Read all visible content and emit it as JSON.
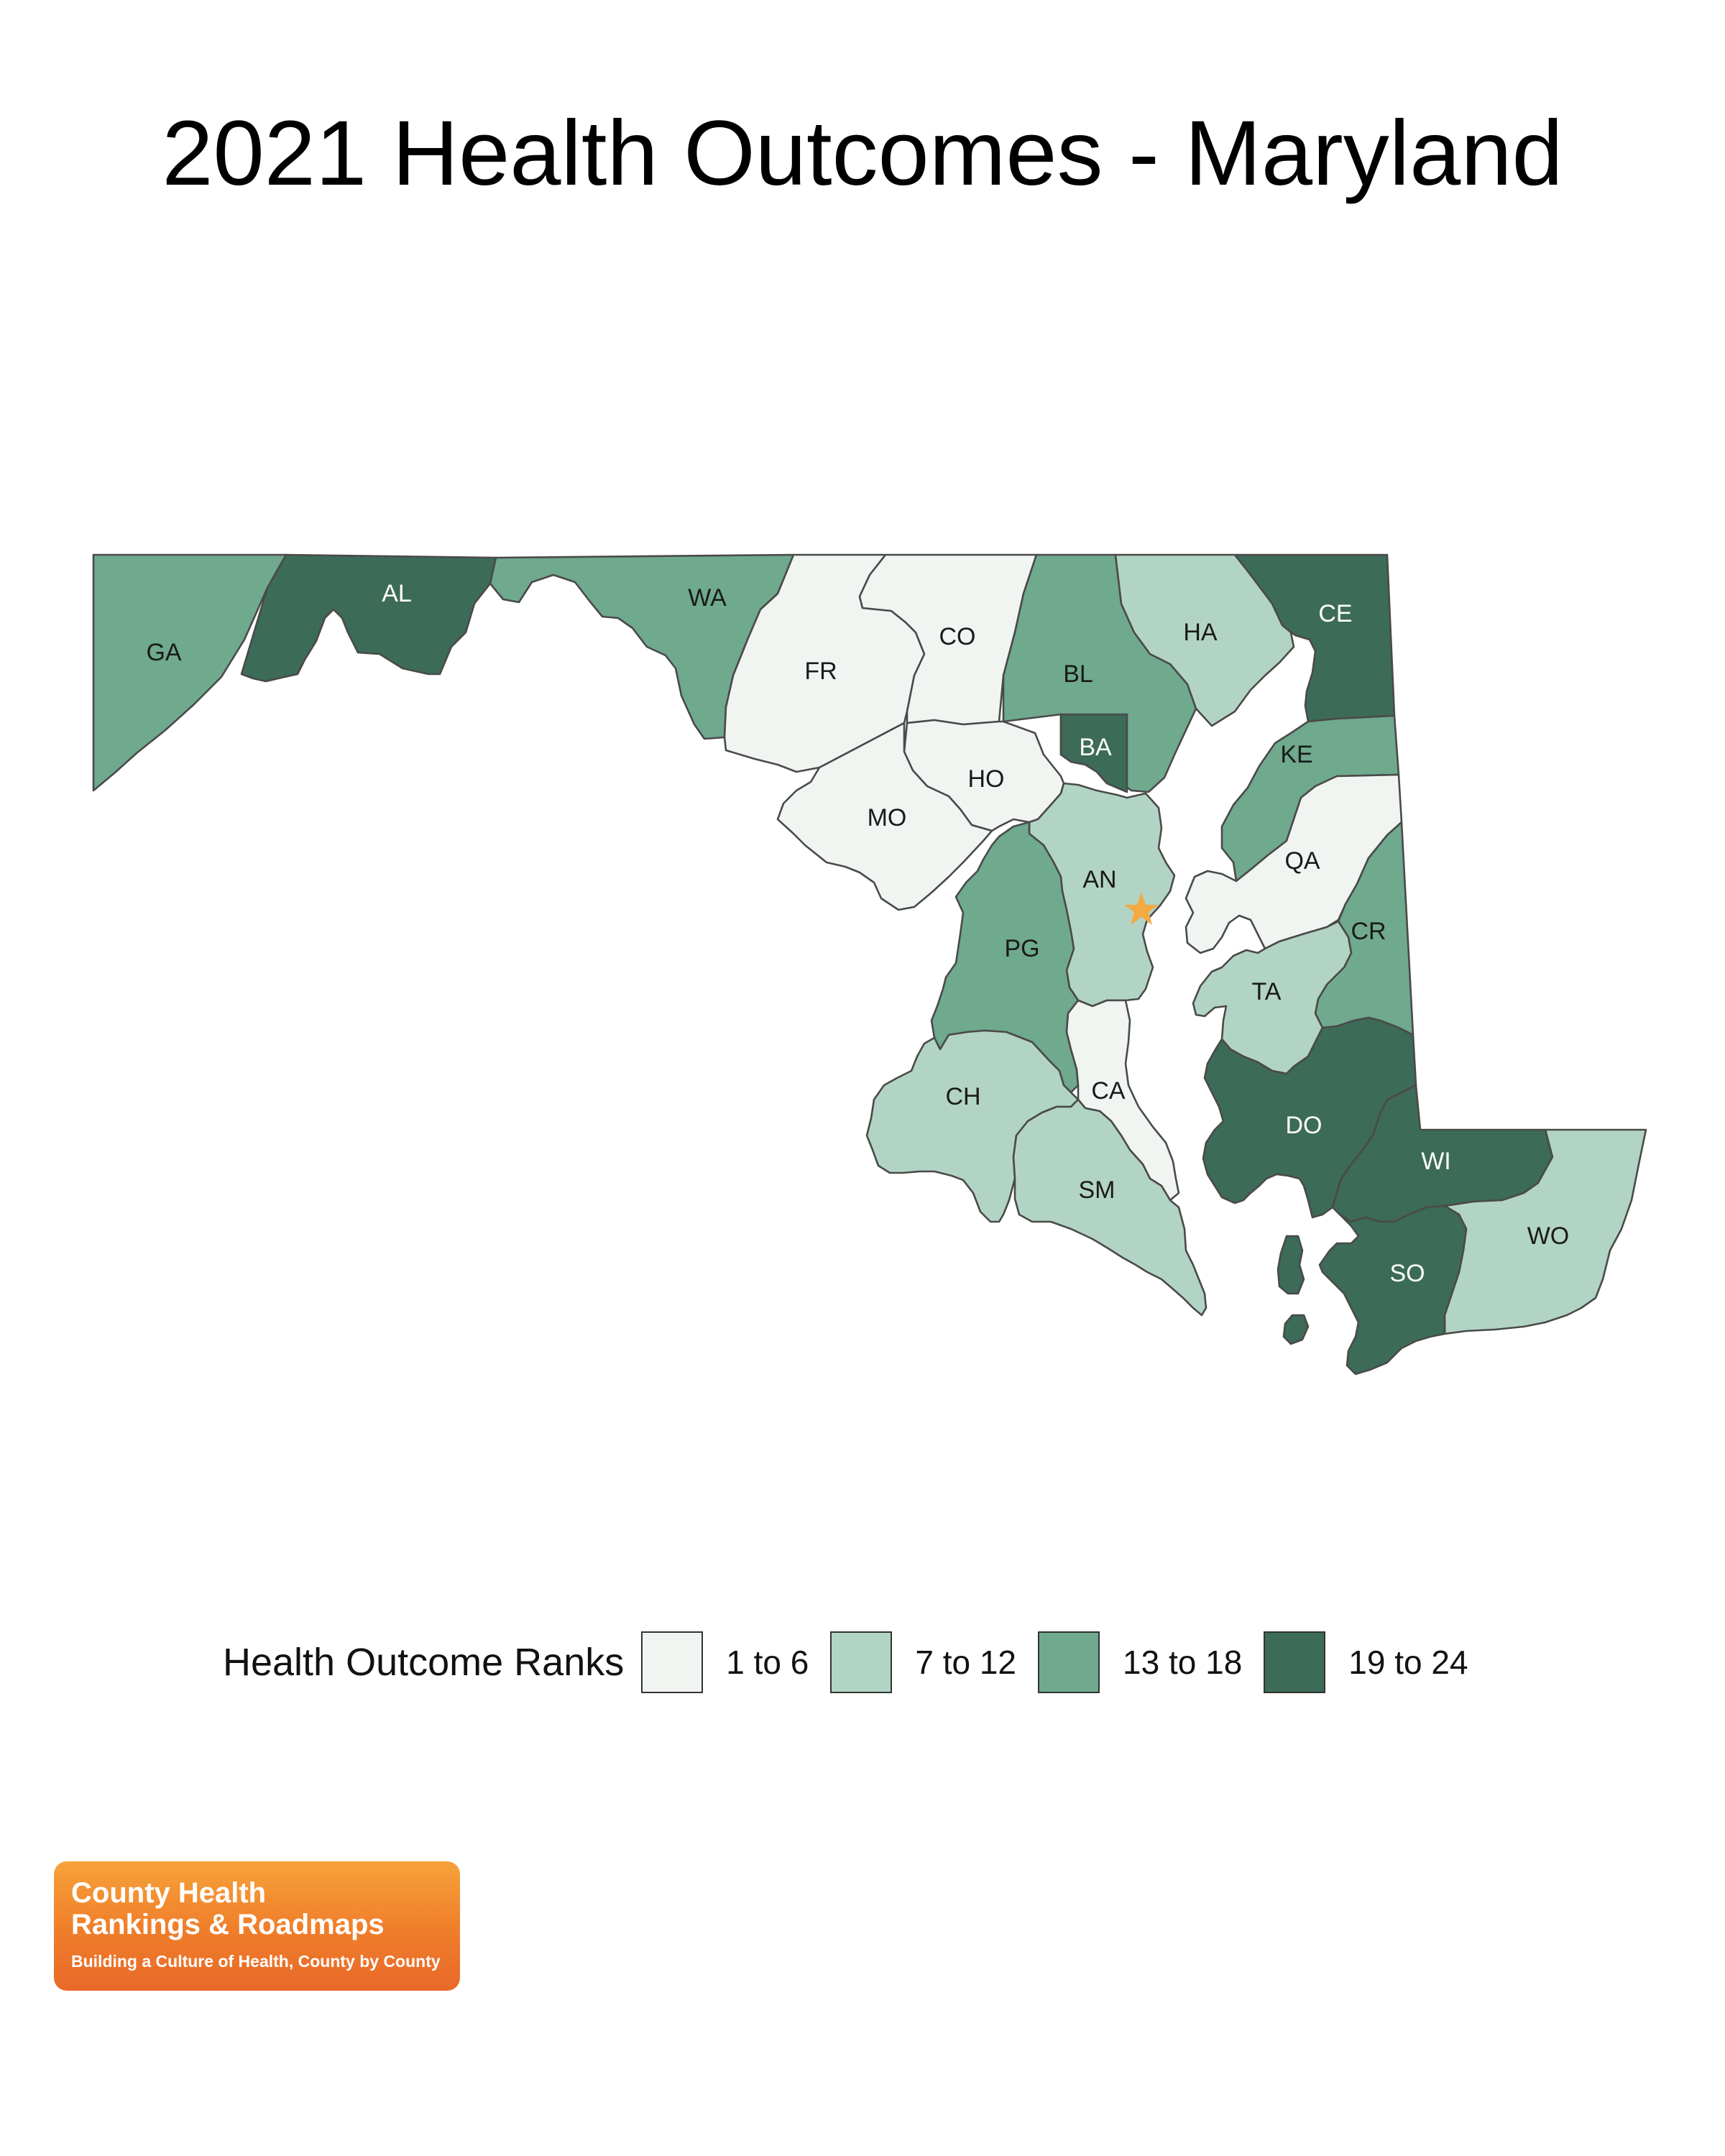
{
  "title": "2021 Health Outcomes - Maryland",
  "legend": {
    "title": "Health Outcome Ranks",
    "bins": [
      {
        "label": "1 to 6",
        "color": "#f0f5f2"
      },
      {
        "label": "7 to 12",
        "color": "#b2d4c4"
      },
      {
        "label": "13 to 18",
        "color": "#6fa98e"
      },
      {
        "label": "19 to 24",
        "color": "#3c6b57"
      }
    ]
  },
  "counties": [
    {
      "abbr": "GA",
      "bin": 2
    },
    {
      "abbr": "AL",
      "bin": 3
    },
    {
      "abbr": "WA",
      "bin": 2
    },
    {
      "abbr": "FR",
      "bin": 0
    },
    {
      "abbr": "CO",
      "bin": 0
    },
    {
      "abbr": "BL",
      "bin": 2
    },
    {
      "abbr": "HA",
      "bin": 1
    },
    {
      "abbr": "CE",
      "bin": 3
    },
    {
      "abbr": "BA",
      "bin": 3
    },
    {
      "abbr": "HO",
      "bin": 0
    },
    {
      "abbr": "MO",
      "bin": 0
    },
    {
      "abbr": "KE",
      "bin": 2
    },
    {
      "abbr": "QA",
      "bin": 0
    },
    {
      "abbr": "AN",
      "bin": 1
    },
    {
      "abbr": "PG",
      "bin": 2
    },
    {
      "abbr": "CR",
      "bin": 2
    },
    {
      "abbr": "TA",
      "bin": 1
    },
    {
      "abbr": "CA",
      "bin": 0
    },
    {
      "abbr": "CH",
      "bin": 1
    },
    {
      "abbr": "DO",
      "bin": 3
    },
    {
      "abbr": "WI",
      "bin": 3
    },
    {
      "abbr": "SM",
      "bin": 1
    },
    {
      "abbr": "WO",
      "bin": 1
    },
    {
      "abbr": "SO",
      "bin": 3
    }
  ],
  "capital_marker": {
    "color": "#f5a941",
    "icon": "star-icon"
  },
  "logo": {
    "line1": "County Health",
    "line2": "Rankings & Roadmaps",
    "tagline": "Building a Culture of Health, County by County"
  }
}
